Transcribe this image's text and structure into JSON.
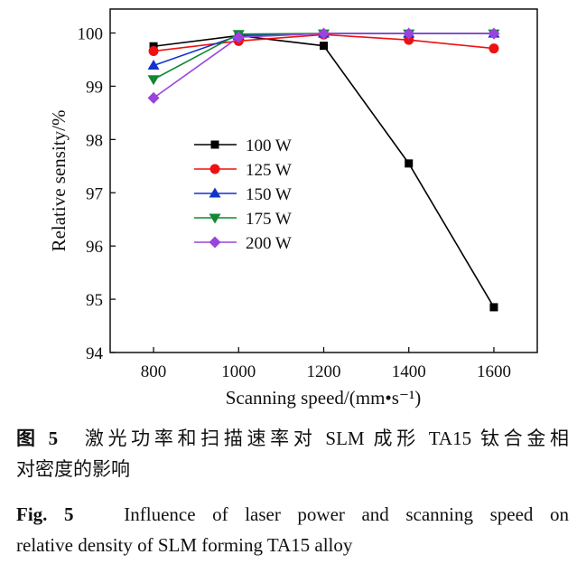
{
  "chart_data": {
    "type": "line",
    "xlabel": "Scanning speed/(mm•s⁻¹)",
    "ylabel": "Relative sensity/%",
    "x": [
      800,
      1000,
      1200,
      1400,
      1600
    ],
    "xticks": [
      800,
      1000,
      1200,
      1400,
      1600
    ],
    "yticks": [
      94,
      95,
      96,
      97,
      98,
      99,
      100
    ],
    "xlim": [
      698,
      1702
    ],
    "ylim": [
      94,
      100.45
    ],
    "grid": false,
    "legend_position": "center-left",
    "series": [
      {
        "name": "100 W",
        "color": "#000000",
        "marker": "square",
        "values": [
          99.75,
          99.95,
          99.76,
          97.55,
          94.85
        ]
      },
      {
        "name": "125 W",
        "color": "#ee1111",
        "marker": "circle",
        "values": [
          99.66,
          99.85,
          99.97,
          99.87,
          99.71
        ]
      },
      {
        "name": "150 W",
        "color": "#1133cc",
        "marker": "triangle-up",
        "values": [
          99.39,
          99.95,
          99.99,
          99.99,
          99.99
        ]
      },
      {
        "name": "175 W",
        "color": "#118833",
        "marker": "triangle-down",
        "values": [
          99.13,
          99.98,
          99.99,
          99.99,
          99.99
        ]
      },
      {
        "name": "200 W",
        "color": "#9944dd",
        "marker": "diamond",
        "values": [
          98.78,
          99.92,
          99.99,
          99.99,
          99.99
        ]
      }
    ]
  },
  "caption": {
    "cn_label": "图 5",
    "cn_line1": "激光功率和扫描速率对 SLM 成形 TA15 钛合金相",
    "cn_line2": "对密度的影响",
    "en_label": "Fig. 5",
    "en_line1": "Influence of laser power and scanning speed on",
    "en_line2": "relative density of SLM forming TA15 alloy"
  }
}
